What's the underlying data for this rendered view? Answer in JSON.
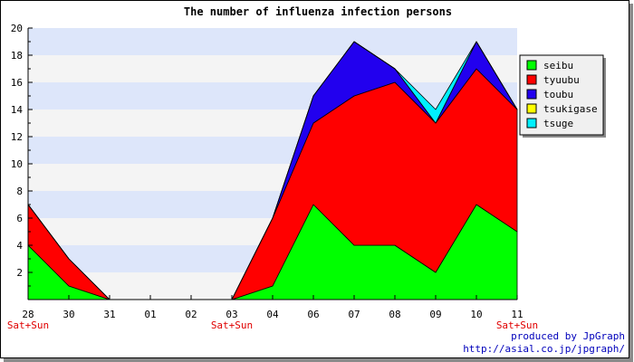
{
  "chart_data": {
    "type": "area",
    "stacked": true,
    "title": "The number of influenza infection persons",
    "categories": [
      "28",
      "30",
      "31",
      "01",
      "02",
      "03",
      "04",
      "06",
      "07",
      "08",
      "09",
      "10",
      "11"
    ],
    "weekend_marks": [
      {
        "category": "28",
        "label": "Sat+Sun"
      },
      {
        "category": "03",
        "label": "Sat+Sun"
      },
      {
        "category": "11",
        "label": "Sat+Sun"
      }
    ],
    "ylim": [
      0,
      20
    ],
    "yticks": [
      2,
      4,
      6,
      8,
      10,
      12,
      14,
      16,
      18,
      20
    ],
    "grid": "horizontal-bands",
    "band_colors": [
      "#f4f4f4",
      "#dde6fa"
    ],
    "legend_position": "right",
    "series": [
      {
        "name": "seibu",
        "color": "#00ff00",
        "values": [
          4,
          1,
          0,
          0,
          0,
          0,
          1,
          7,
          4,
          4,
          2,
          7,
          5
        ]
      },
      {
        "name": "tyuubu",
        "color": "#ff0000",
        "values": [
          3,
          2,
          0,
          0,
          0,
          0,
          5,
          6,
          11,
          12,
          11,
          10,
          9
        ]
      },
      {
        "name": "toubu",
        "color": "#2200ee",
        "values": [
          0,
          0,
          0,
          0,
          0,
          0,
          0,
          2,
          4,
          1,
          0,
          2,
          0
        ]
      },
      {
        "name": "tsukigase",
        "color": "#ffff00",
        "values": [
          0,
          0,
          0,
          0,
          0,
          0,
          0,
          0,
          0,
          0,
          0,
          0,
          0
        ]
      },
      {
        "name": "tsuge",
        "color": "#00f0ff",
        "values": [
          0,
          0,
          0,
          0,
          0,
          0,
          0,
          0,
          0,
          0,
          1,
          0,
          0
        ]
      }
    ]
  },
  "footer": {
    "line1": "produced by JpGraph",
    "line2": "http://asial.co.jp/jpgraph/"
  }
}
